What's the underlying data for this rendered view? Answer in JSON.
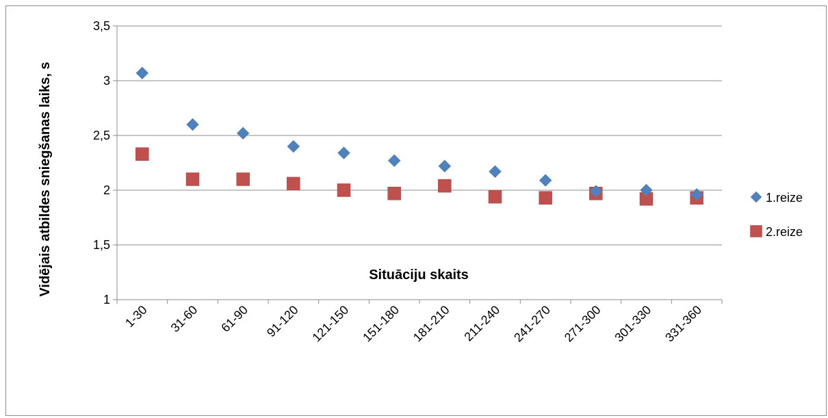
{
  "chart_data": {
    "type": "scatter",
    "title": "",
    "xlabel": "Situāciju skaits",
    "ylabel": "Vidējais atbildes sniegšanas laiks, s",
    "categories": [
      "1-30",
      "31-60",
      "61-90",
      "91-120",
      "121-150",
      "151-180",
      "181-210",
      "211-240",
      "241-270",
      "271-300",
      "301-330",
      "331-360"
    ],
    "ylim": [
      1,
      3.5
    ],
    "yticks": [
      "1",
      "1,5",
      "2",
      "2,5",
      "3",
      "3,5"
    ],
    "grid": true,
    "legend_position": "right",
    "series": [
      {
        "name": "1.reize",
        "marker": "diamond",
        "color": "#4f81bd",
        "values": [
          3.07,
          2.6,
          2.52,
          2.4,
          2.34,
          2.27,
          2.22,
          2.17,
          2.09,
          1.99,
          2.0,
          1.96
        ]
      },
      {
        "name": "2.reize",
        "marker": "square",
        "color": "#c0504d",
        "values": [
          2.33,
          2.1,
          2.1,
          2.06,
          2.0,
          1.97,
          2.04,
          1.94,
          1.93,
          1.97,
          1.92,
          1.93
        ]
      }
    ]
  }
}
